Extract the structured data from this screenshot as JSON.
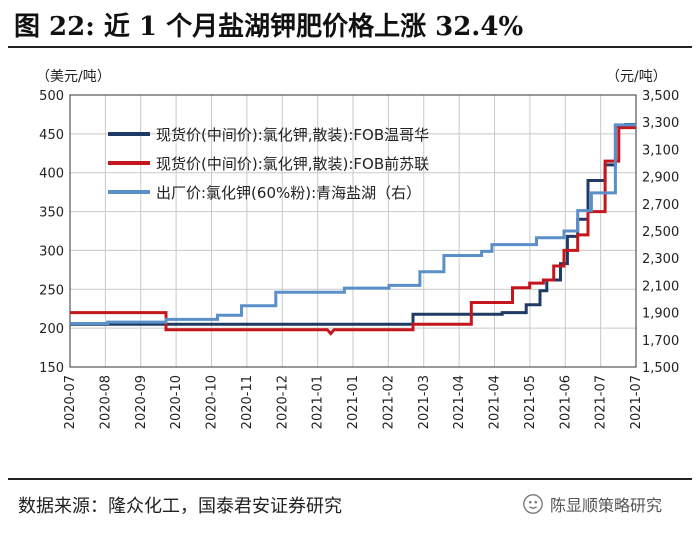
{
  "header": {
    "title": "图 22:  近 1 个月盐湖钾肥价格上涨 32.4%"
  },
  "axes": {
    "left_unit": "（美元/吨）",
    "right_unit": "（元/吨）"
  },
  "footer": {
    "source": "数据来源：隆众化工，国泰君安证券研究",
    "watermark": "陈显顺策略研究"
  },
  "colors": {
    "navy": "#1f3a64",
    "red": "#c4161c",
    "lightblue": "#5b8fc9",
    "grid": "#c9c9c9"
  },
  "chart_data": {
    "type": "line",
    "categories": [
      "2020-07",
      "2020-08",
      "2020-09",
      "2020-10",
      "2020-10",
      "2020-11",
      "2020-12",
      "2021-01",
      "2021-01",
      "2021-02",
      "2021-03",
      "2021-04",
      "2021-04",
      "2021-05",
      "2021-06",
      "2021-07",
      "2021-07"
    ],
    "yleft": {
      "lim": [
        150,
        500
      ],
      "ticks": [
        150,
        200,
        250,
        300,
        350,
        400,
        450,
        500
      ]
    },
    "yright": {
      "lim": [
        1500,
        3500
      ],
      "ticks": [
        "1,500",
        "1,700",
        "1,900",
        "2,100",
        "2,300",
        "2,500",
        "2,700",
        "2,900",
        "3,100",
        "3,300",
        "3,500"
      ],
      "tick_values": [
        1500,
        1700,
        1900,
        2100,
        2300,
        2500,
        2700,
        2900,
        3100,
        3300,
        3500
      ]
    },
    "x_range": [
      0,
      16.5
    ],
    "legend": {
      "placement": "top-left"
    },
    "series": [
      {
        "name": "现货价(中间价):氯化钾,散装):FOB温哥华",
        "axis": "left",
        "color": "#1f3a64",
        "points": [
          [
            0,
            205
          ],
          [
            7.6,
            205
          ],
          [
            10,
            205
          ],
          [
            10,
            218
          ],
          [
            12.6,
            218
          ],
          [
            12.6,
            220
          ],
          [
            13.3,
            220
          ],
          [
            13.3,
            230
          ],
          [
            13.7,
            230
          ],
          [
            13.7,
            248
          ],
          [
            13.9,
            248
          ],
          [
            13.9,
            262
          ],
          [
            14.3,
            262
          ],
          [
            14.3,
            283
          ],
          [
            14.5,
            283
          ],
          [
            14.5,
            318
          ],
          [
            14.8,
            318
          ],
          [
            14.8,
            340
          ],
          [
            15.1,
            340
          ],
          [
            15.1,
            390
          ],
          [
            15.6,
            390
          ],
          [
            15.6,
            410
          ],
          [
            15.9,
            410
          ],
          [
            15.9,
            460
          ],
          [
            16.2,
            460
          ],
          [
            16.2,
            462
          ],
          [
            16.5,
            462
          ]
        ]
      },
      {
        "name": "现货价(中间价):氯化钾,散装):FOB前苏联",
        "axis": "left",
        "color": "#c4161c",
        "points": [
          [
            0,
            220
          ],
          [
            2.8,
            220
          ],
          [
            2.8,
            198
          ],
          [
            7.5,
            198
          ],
          [
            7.6,
            193
          ],
          [
            7.7,
            198
          ],
          [
            10,
            198
          ],
          [
            10,
            205
          ],
          [
            11.7,
            205
          ],
          [
            11.7,
            233
          ],
          [
            12.9,
            233
          ],
          [
            12.9,
            252
          ],
          [
            13.4,
            252
          ],
          [
            13.4,
            258
          ],
          [
            13.8,
            258
          ],
          [
            13.8,
            262
          ],
          [
            14.1,
            262
          ],
          [
            14.1,
            280
          ],
          [
            14.4,
            280
          ],
          [
            14.4,
            300
          ],
          [
            14.8,
            300
          ],
          [
            14.8,
            320
          ],
          [
            15.1,
            320
          ],
          [
            15.1,
            350
          ],
          [
            15.6,
            350
          ],
          [
            15.6,
            415
          ],
          [
            15.9,
            415
          ],
          [
            15.9,
            415
          ],
          [
            16.0,
            415
          ],
          [
            16.0,
            458
          ],
          [
            16.5,
            458
          ]
        ]
      },
      {
        "name": "出厂价:氯化钾(60%粉):青海盐湖（右）",
        "axis": "right",
        "color": "#5b8fc9",
        "points": [
          [
            0,
            1820
          ],
          [
            1.1,
            1820
          ],
          [
            1.1,
            1830
          ],
          [
            2.8,
            1830
          ],
          [
            2.8,
            1850
          ],
          [
            4.3,
            1850
          ],
          [
            4.3,
            1880
          ],
          [
            5,
            1880
          ],
          [
            5,
            1950
          ],
          [
            6,
            1950
          ],
          [
            6,
            2050
          ],
          [
            8,
            2050
          ],
          [
            8,
            2080
          ],
          [
            9.3,
            2080
          ],
          [
            9.3,
            2100
          ],
          [
            10.2,
            2100
          ],
          [
            10.2,
            2200
          ],
          [
            10.9,
            2200
          ],
          [
            10.9,
            2320
          ],
          [
            12,
            2320
          ],
          [
            12,
            2350
          ],
          [
            12.3,
            2350
          ],
          [
            12.3,
            2400
          ],
          [
            13.6,
            2400
          ],
          [
            13.6,
            2450
          ],
          [
            14.4,
            2450
          ],
          [
            14.4,
            2500
          ],
          [
            14.8,
            2500
          ],
          [
            14.8,
            2650
          ],
          [
            15.2,
            2650
          ],
          [
            15.2,
            2780
          ],
          [
            15.9,
            2780
          ],
          [
            15.9,
            3280
          ],
          [
            16.5,
            3280
          ]
        ]
      }
    ]
  }
}
